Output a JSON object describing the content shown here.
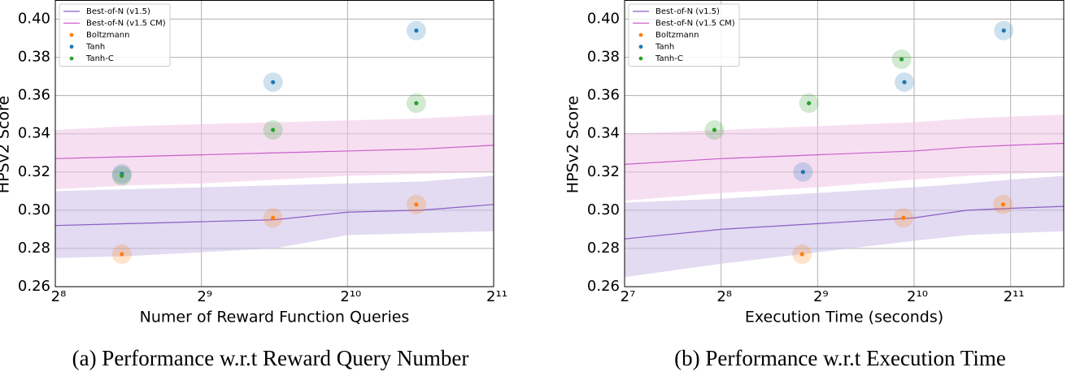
{
  "chart_data": [
    {
      "type": "line",
      "log_x": true,
      "grid": true,
      "legend": "upper left",
      "caption": "(a) Performance w.r.t Reward Query Number",
      "xlabel": "Numer of Reward Function Queries",
      "ylabel": "HPSv2 Score",
      "xlim": [
        256,
        2048
      ],
      "xticks": [
        {
          "value": 256,
          "label": "2⁸"
        },
        {
          "value": 512,
          "label": "2⁹"
        },
        {
          "value": 1024,
          "label": "2¹⁰"
        },
        {
          "value": 2048,
          "label": "2¹¹"
        }
      ],
      "ylim": [
        0.26,
        0.41
      ],
      "yticks": [
        {
          "value": 0.26,
          "label": "0.26"
        },
        {
          "value": 0.28,
          "label": "0.28"
        },
        {
          "value": 0.3,
          "label": "0.30"
        },
        {
          "value": 0.32,
          "label": "0.32"
        },
        {
          "value": 0.34,
          "label": "0.34"
        },
        {
          "value": 0.36,
          "label": "0.36"
        },
        {
          "value": 0.38,
          "label": "0.38"
        },
        {
          "value": 0.4,
          "label": "0.40"
        }
      ],
      "series": [
        {
          "name": "Best-of-N (v1.5)",
          "type": "band-line",
          "color": "#8c5cc4",
          "band_color": "#cbbde6",
          "x": [
            256,
            362,
            512,
            724,
            1024,
            1448,
            2048
          ],
          "values": [
            0.292,
            0.293,
            0.294,
            0.295,
            0.299,
            0.3,
            0.303
          ],
          "lower": [
            0.275,
            0.276,
            0.278,
            0.28,
            0.287,
            0.288,
            0.289
          ],
          "upper": [
            0.31,
            0.311,
            0.312,
            0.313,
            0.314,
            0.315,
            0.318
          ]
        },
        {
          "name": "Best-of-N (v1.5 CM)",
          "type": "band-line",
          "color": "#c85fc8",
          "band_color": "#f1c4e8",
          "x": [
            256,
            362,
            512,
            724,
            1024,
            1448,
            2048
          ],
          "values": [
            0.327,
            0.328,
            0.329,
            0.33,
            0.331,
            0.332,
            0.334
          ],
          "lower": [
            0.311,
            0.313,
            0.314,
            0.316,
            0.318,
            0.319,
            0.32
          ],
          "upper": [
            0.342,
            0.344,
            0.345,
            0.346,
            0.347,
            0.348,
            0.35
          ]
        },
        {
          "name": "Boltzmann",
          "type": "scatter",
          "color": "#ff7f0e",
          "x": [
            351,
            719,
            1419
          ],
          "values": [
            0.277,
            0.296,
            0.303
          ]
        },
        {
          "name": "Tanh",
          "type": "scatter",
          "color": "#1f77b4",
          "x": [
            351,
            719,
            1419
          ],
          "values": [
            0.319,
            0.367,
            0.394
          ]
        },
        {
          "name": "Tanh-C",
          "type": "scatter",
          "color": "#2ca02c",
          "x": [
            351,
            719,
            1419
          ],
          "values": [
            0.318,
            0.342,
            0.356
          ]
        }
      ]
    },
    {
      "type": "line",
      "log_x": true,
      "grid": true,
      "legend": "upper left",
      "caption": "(b) Performance w.r.t Execution Time",
      "xlabel": "Execution Time (seconds)",
      "ylabel": "HPSv2 Score",
      "xlim": [
        128,
        3000
      ],
      "xticks": [
        {
          "value": 128,
          "label": "2⁷"
        },
        {
          "value": 256,
          "label": "2⁸"
        },
        {
          "value": 512,
          "label": "2⁹"
        },
        {
          "value": 1024,
          "label": "2¹⁰"
        },
        {
          "value": 2048,
          "label": "2¹¹"
        }
      ],
      "ylim": [
        0.26,
        0.41
      ],
      "yticks": [
        {
          "value": 0.26,
          "label": "0.26"
        },
        {
          "value": 0.28,
          "label": "0.28"
        },
        {
          "value": 0.3,
          "label": "0.30"
        },
        {
          "value": 0.32,
          "label": "0.32"
        },
        {
          "value": 0.34,
          "label": "0.34"
        },
        {
          "value": 0.36,
          "label": "0.36"
        },
        {
          "value": 0.38,
          "label": "0.38"
        },
        {
          "value": 0.4,
          "label": "0.40"
        }
      ],
      "series": [
        {
          "name": "Best-of-N (v1.5)",
          "type": "band-line",
          "color": "#8c5cc4",
          "band_color": "#cbbde6",
          "x": [
            128,
            256,
            512,
            1024,
            1500,
            2048,
            3000
          ],
          "values": [
            0.285,
            0.29,
            0.293,
            0.296,
            0.3,
            0.301,
            0.302
          ],
          "lower": [
            0.265,
            0.272,
            0.278,
            0.284,
            0.287,
            0.288,
            0.289
          ],
          "upper": [
            0.304,
            0.306,
            0.309,
            0.312,
            0.314,
            0.316,
            0.318
          ]
        },
        {
          "name": "Best-of-N (v1.5 CM)",
          "type": "band-line",
          "color": "#c85fc8",
          "band_color": "#f1c4e8",
          "x": [
            128,
            256,
            512,
            1024,
            1500,
            2048,
            3000
          ],
          "values": [
            0.324,
            0.327,
            0.329,
            0.331,
            0.333,
            0.334,
            0.335
          ],
          "lower": [
            0.305,
            0.309,
            0.312,
            0.316,
            0.318,
            0.319,
            0.32
          ],
          "upper": [
            0.34,
            0.342,
            0.344,
            0.346,
            0.348,
            0.349,
            0.35
          ]
        },
        {
          "name": "Boltzmann",
          "type": "scatter",
          "color": "#ff7f0e",
          "x": [
            458,
            949,
            1940
          ],
          "values": [
            0.277,
            0.296,
            0.303
          ]
        },
        {
          "name": "Tanh",
          "type": "scatter",
          "color": "#1f77b4",
          "x": [
            461,
            955,
            1950
          ],
          "values": [
            0.32,
            0.367,
            0.394
          ]
        },
        {
          "name": "Tanh-C",
          "type": "scatter",
          "color": "#2ca02c",
          "x": [
            244,
            481,
            936
          ],
          "values": [
            0.342,
            0.356,
            0.379
          ]
        }
      ]
    }
  ]
}
